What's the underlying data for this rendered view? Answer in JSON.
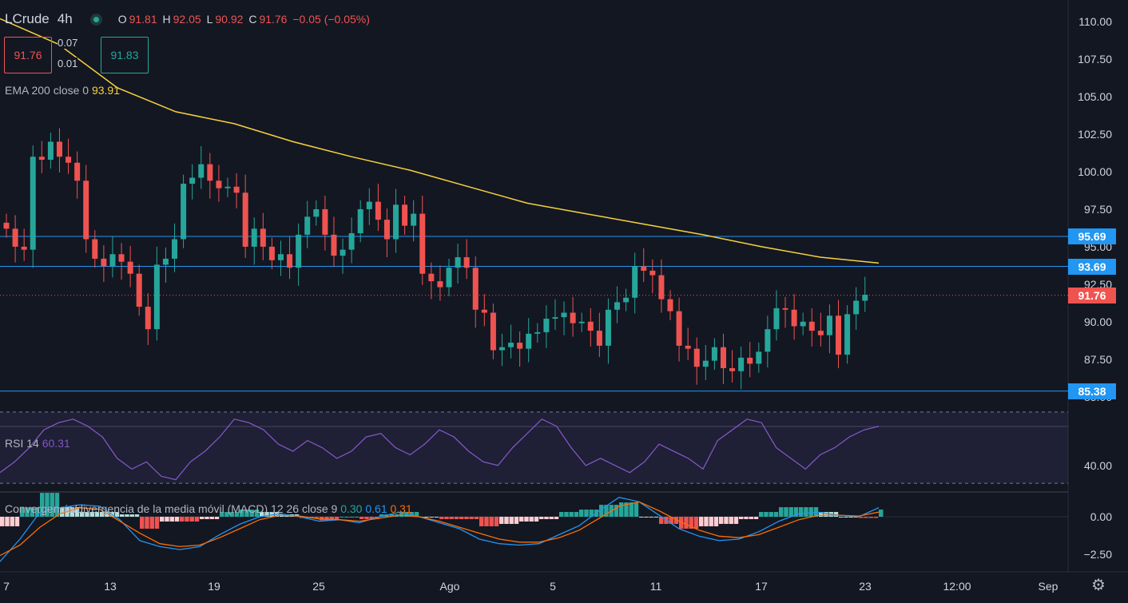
{
  "header": {
    "symbol": "LCrude",
    "timeframe": "4h",
    "open_label": "O",
    "open": "91.81",
    "high_label": "H",
    "high": "92.05",
    "low_label": "L",
    "low": "90.92",
    "close_label": "C",
    "close": "91.76",
    "change": "−0.05 (−0.05%)"
  },
  "trade": {
    "sell_price": "91.76",
    "buy_price": "91.83",
    "spread_top": "0.07",
    "spread_bottom": "0.01"
  },
  "indicators": {
    "ema_label": "EMA 200 close 0",
    "ema_value": "93.91",
    "rsi_label": "RSI 14",
    "rsi_value": "60.31",
    "macd_label": "Convergencia/divergencia de la media móvil (MACD)",
    "macd_params": "12 26 close 9",
    "macd_hist": "0.30",
    "macd_line": "0.61",
    "macd_signal": "0.31"
  },
  "price_axis": {
    "ticks": [
      "110.00",
      "107.50",
      "105.00",
      "102.50",
      "100.00",
      "97.50",
      "95.00",
      "92.50",
      "90.00",
      "87.50",
      "85.00"
    ],
    "tick_values": [
      110,
      107.5,
      105,
      102.5,
      100,
      97.5,
      95,
      92.5,
      90,
      87.5,
      85
    ],
    "current_price": "91.76",
    "current_value": 91.76
  },
  "horizontal_lines": [
    {
      "label": "95.69",
      "value": 95.69
    },
    {
      "label": "93.69",
      "value": 93.69
    },
    {
      "label": "85.38",
      "value": 85.38
    }
  ],
  "rsi_axis": {
    "tick": "40.00"
  },
  "macd_axis": {
    "ticks": [
      "0.00",
      "−2.50"
    ]
  },
  "time_axis": [
    "7",
    "13",
    "19",
    "25",
    "Ago",
    "5",
    "11",
    "17",
    "23",
    "12:00",
    "Sep"
  ],
  "colors": {
    "background": "#131722",
    "up": "#26a69a",
    "down": "#ef5350",
    "ema": "#f7d23c",
    "hline": "#2196f3",
    "rsi": "#7e57c2",
    "macd": "#2196f3",
    "signal": "#ff6d00"
  },
  "chart_data": {
    "type": "candlestick",
    "symbol": "LCrude",
    "timeframe": "4h",
    "ylim": [
      84,
      111
    ],
    "xlabels": [
      "7",
      "13",
      "19",
      "25",
      "Ago",
      "5",
      "11",
      "17",
      "23",
      "12:00",
      "Sep"
    ],
    "close_path": [
      96.2,
      95.0,
      94.8,
      101.0,
      100.8,
      102.0,
      101.0,
      100.6,
      99.4,
      95.5,
      94.2,
      93.7,
      94.5,
      94.0,
      93.2,
      91.0,
      89.5,
      93.8,
      94.2,
      95.5,
      99.2,
      99.6,
      100.5,
      99.4,
      98.9,
      99.0,
      98.6,
      95.0,
      96.2,
      95.0,
      94.1,
      94.5,
      93.6,
      95.8,
      97.0,
      97.5,
      95.8,
      94.4,
      94.8,
      95.9,
      97.5,
      98.0,
      96.8,
      95.5,
      97.8,
      96.4,
      97.2,
      93.2,
      92.7,
      92.3,
      93.6,
      94.3,
      93.6,
      90.8,
      90.6,
      88.1,
      88.3,
      88.6,
      88.2,
      89.2,
      89.3,
      90.2,
      90.3,
      90.6,
      89.9,
      90.0,
      89.4,
      88.4,
      90.8,
      91.3,
      91.6,
      93.7,
      93.4,
      93.1,
      91.5,
      90.7,
      88.4,
      88.2,
      87.0,
      87.4,
      88.3,
      86.9,
      86.7,
      87.6,
      87.2,
      88.0,
      89.5,
      90.9,
      90.8,
      89.7,
      90.0,
      89.4,
      89.1,
      90.4,
      87.8,
      90.5,
      91.4,
      91.8
    ],
    "ema200_path": [
      110.2,
      108.5,
      105.6,
      104.0,
      103.2,
      102.0,
      101.0,
      100.1,
      99.0,
      97.9,
      97.2,
      96.5,
      95.8,
      95.0,
      94.3,
      93.91
    ],
    "rsi_path": [
      36,
      42,
      50,
      60,
      64,
      66,
      62,
      56,
      44,
      38,
      42,
      34,
      32,
      42,
      48,
      56,
      66,
      64,
      60,
      52,
      48,
      54,
      50,
      44,
      48,
      56,
      58,
      50,
      46,
      52,
      60,
      56,
      48,
      42,
      40,
      50,
      58,
      66,
      62,
      50,
      40,
      44,
      40,
      36,
      42,
      52,
      48,
      44,
      38,
      54,
      60,
      66,
      64,
      50,
      44,
      38,
      46,
      50,
      56,
      60,
      62
    ],
    "rsi_value": 60.31,
    "macd_path": [
      -3.0,
      -1.5,
      0.3,
      0.6,
      0.8,
      0.7,
      -0.2,
      -1.6,
      -2.0,
      -2.2,
      -2.0,
      -1.2,
      -0.5,
      0.0,
      0.2,
      0.0,
      -0.3,
      -0.2,
      -0.4,
      0.0,
      0.3,
      0.0,
      -0.4,
      -0.8,
      -1.5,
      -1.8,
      -1.9,
      -1.8,
      -1.2,
      -0.6,
      0.4,
      1.3,
      1.0,
      0.1,
      -0.8,
      -1.3,
      -1.6,
      -1.5,
      -1.0,
      -0.3,
      0.2,
      0.3,
      0.1,
      0.0,
      0.61
    ],
    "signal_path": [
      -2.6,
      -1.9,
      -0.7,
      0.2,
      0.6,
      0.5,
      -0.3,
      -1.1,
      -1.8,
      -2.0,
      -1.9,
      -1.4,
      -0.8,
      -0.2,
      0.1,
      0.05,
      -0.15,
      -0.2,
      -0.3,
      -0.1,
      0.1,
      0.0,
      -0.3,
      -0.7,
      -1.1,
      -1.5,
      -1.7,
      -1.7,
      -1.4,
      -0.9,
      -0.1,
      0.7,
      1.0,
      0.4,
      -0.3,
      -0.9,
      -1.3,
      -1.4,
      -1.2,
      -0.7,
      -0.2,
      0.1,
      0.1,
      0.05,
      0.31
    ]
  }
}
